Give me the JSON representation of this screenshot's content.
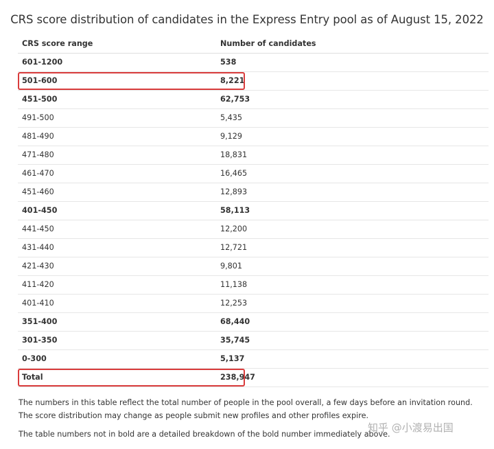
{
  "title": "CRS score distribution of candidates in the Express Entry pool as of August 15, 2022",
  "table": {
    "headers": [
      "CRS score range",
      "Number of candidates"
    ],
    "rows": [
      {
        "range": "601-1200",
        "count": "538",
        "bold": true,
        "highlight": false
      },
      {
        "range": "501-600",
        "count": "8,221",
        "bold": true,
        "highlight": true
      },
      {
        "range": "451-500",
        "count": "62,753",
        "bold": true,
        "highlight": false
      },
      {
        "range": "491-500",
        "count": "5,435",
        "bold": false,
        "highlight": false
      },
      {
        "range": "481-490",
        "count": "9,129",
        "bold": false,
        "highlight": false
      },
      {
        "range": "471-480",
        "count": "18,831",
        "bold": false,
        "highlight": false
      },
      {
        "range": "461-470",
        "count": "16,465",
        "bold": false,
        "highlight": false
      },
      {
        "range": "451-460",
        "count": "12,893",
        "bold": false,
        "highlight": false
      },
      {
        "range": "401-450",
        "count": "58,113",
        "bold": true,
        "highlight": false
      },
      {
        "range": "441-450",
        "count": "12,200",
        "bold": false,
        "highlight": false
      },
      {
        "range": "431-440",
        "count": "12,721",
        "bold": false,
        "highlight": false
      },
      {
        "range": "421-430",
        "count": "9,801",
        "bold": false,
        "highlight": false
      },
      {
        "range": "411-420",
        "count": "11,138",
        "bold": false,
        "highlight": false
      },
      {
        "range": "401-410",
        "count": "12,253",
        "bold": false,
        "highlight": false
      },
      {
        "range": "351-400",
        "count": "68,440",
        "bold": true,
        "highlight": false
      },
      {
        "range": "301-350",
        "count": "35,745",
        "bold": true,
        "highlight": false
      },
      {
        "range": "0-300",
        "count": "5,137",
        "bold": true,
        "highlight": false
      },
      {
        "range": "Total",
        "count": "238,947",
        "bold": true,
        "highlight": true
      }
    ]
  },
  "notes": [
    "The numbers in this table reflect the total number of people in the pool overall, a few days before an invitation round.",
    "The score distribution may change as people submit new profiles and other profiles expire.",
    "The table numbers not in bold are a detailed breakdown of the bold number immediately above."
  ],
  "watermark": "知乎 @小渡易出国",
  "colors": {
    "highlight_border": "#d93b3b",
    "row_divider": "#e6e6e6",
    "text": "#333333"
  }
}
